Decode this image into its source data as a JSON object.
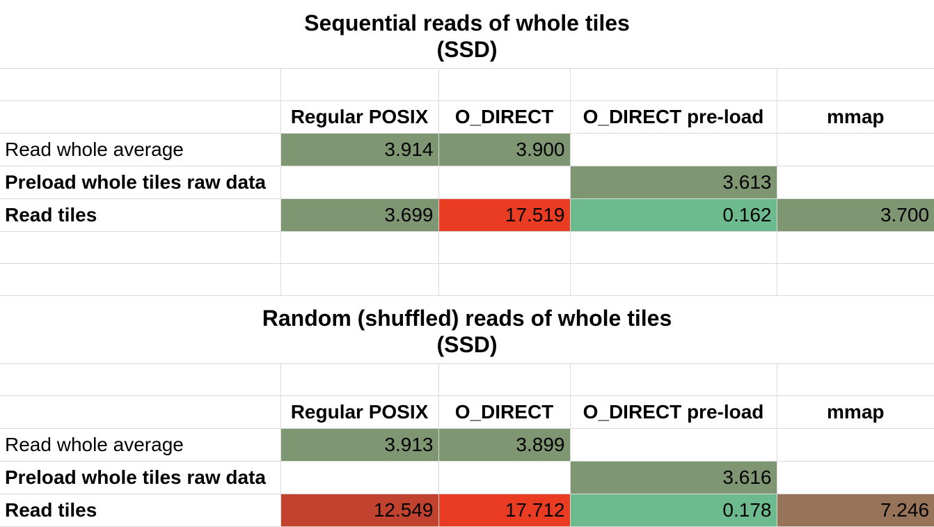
{
  "sections": [
    {
      "title_line1": "Sequential reads of whole tiles",
      "title_line2": "(SSD)",
      "columns": [
        "Regular POSIX",
        "O_DIRECT",
        "O_DIRECT pre-load",
        "mmap"
      ],
      "rows": [
        {
          "label": "Read whole average",
          "values": [
            "3.914",
            "3.900",
            "",
            ""
          ]
        },
        {
          "label": "Preload whole tiles raw data",
          "values": [
            "",
            "",
            "3.613",
            ""
          ]
        },
        {
          "label": "Read tiles",
          "values": [
            "3.699",
            "17.519",
            "0.162",
            "3.700"
          ]
        }
      ],
      "cell_colors": {
        "olive": "#7f9673",
        "red": "#ea3b23",
        "green": "#6cba8d"
      }
    },
    {
      "title_line1": "Random (shuffled) reads of whole tiles",
      "title_line2": "(SSD)",
      "columns": [
        "Regular POSIX",
        "O_DIRECT",
        "O_DIRECT pre-load",
        "mmap"
      ],
      "rows": [
        {
          "label": "Read whole average",
          "values": [
            "3.913",
            "3.899",
            "",
            ""
          ]
        },
        {
          "label": "Preload whole tiles raw data",
          "values": [
            "",
            "",
            "3.616",
            ""
          ]
        },
        {
          "label": "Read tiles",
          "values": [
            "12.549",
            "17.712",
            "0.178",
            "7.246"
          ]
        }
      ],
      "cell_colors": {
        "olive": "#7f9673",
        "red": "#ea3b23",
        "green": "#6cba8d",
        "darkred": "#c0422f",
        "brown": "#967359"
      }
    }
  ]
}
